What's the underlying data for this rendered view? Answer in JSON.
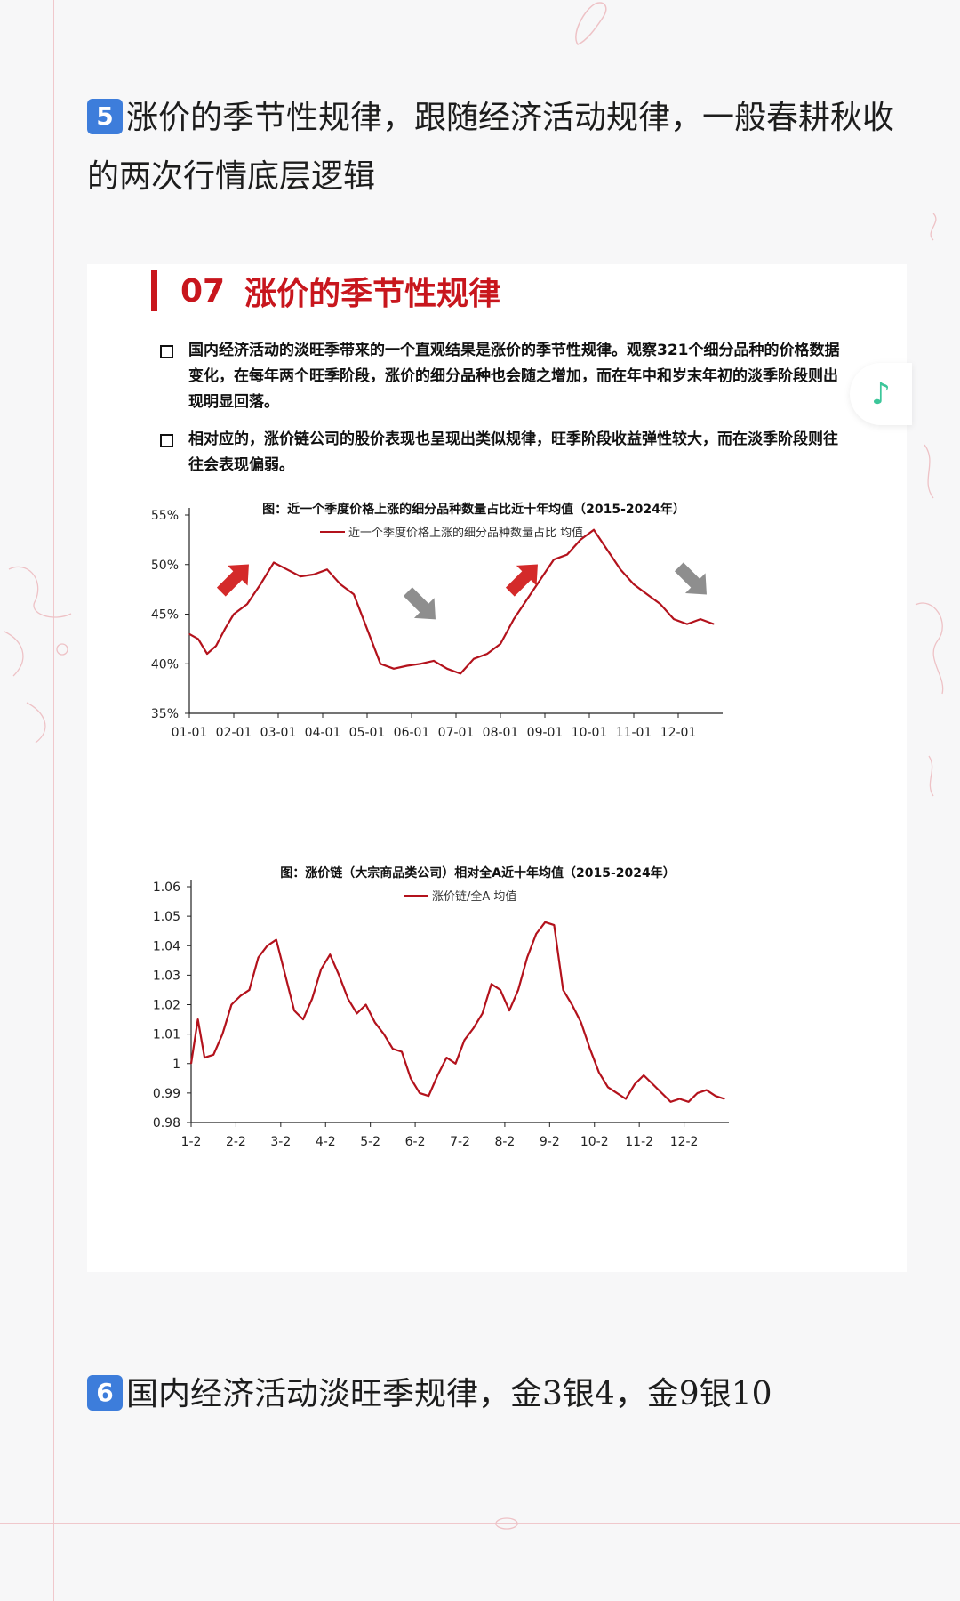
{
  "note5": {
    "badge": "5",
    "text": "涨价的季节性规律，跟随经济活动规律，一般春耕秋收的两次行情底层逻辑"
  },
  "slide": {
    "number": "07",
    "title": "涨价的季节性规律",
    "bullets": [
      "国内经济活动的淡旺季带来的一个直观结果是涨价的季节性规律。观察321个细分品种的价格数据变化，在每年两个旺季阶段，涨价的细分品种也会随之增加，而在年中和岁末年初的淡季阶段则出现明显回落。",
      "相对应的，涨价链公司的股价表现也呈现出类似规律，旺季阶段收益弹性较大，而在淡季阶段则往往会表现偏弱。"
    ]
  },
  "chart_data": [
    {
      "type": "line",
      "title": "图：近一个季度价格上涨的细分品种数量占比近十年均值（2015-2024年）",
      "legend": "top-center",
      "series": [
        {
          "name": "近一个季度价格上涨的细分品种数量占比 均值",
          "color": "#b3121c",
          "x": [
            0,
            0.2,
            0.4,
            0.6,
            0.8,
            1.0,
            1.3,
            1.6,
            1.9,
            2.2,
            2.5,
            2.8,
            3.1,
            3.4,
            3.7,
            4.0,
            4.3,
            4.6,
            4.9,
            5.2,
            5.5,
            5.8,
            6.1,
            6.4,
            6.7,
            7.0,
            7.3,
            7.6,
            7.9,
            8.2,
            8.5,
            8.8,
            9.1,
            9.4,
            9.7,
            10.0,
            10.3,
            10.6,
            10.9,
            11.2,
            11.5,
            11.8
          ],
          "y": [
            43.0,
            42.5,
            41.0,
            41.8,
            43.5,
            45.0,
            46.0,
            48.0,
            50.2,
            49.5,
            48.8,
            49.0,
            49.5,
            48.0,
            47.0,
            43.5,
            40.0,
            39.5,
            39.8,
            40.0,
            40.3,
            39.5,
            39.0,
            40.5,
            41.0,
            42.0,
            44.5,
            46.5,
            48.5,
            50.5,
            51.0,
            52.5,
            53.5,
            51.5,
            49.5,
            48.0,
            47.0,
            46.0,
            44.5,
            44.0,
            44.5,
            44.0
          ]
        }
      ],
      "x_tick_labels": [
        "01-01",
        "02-01",
        "03-01",
        "04-01",
        "05-01",
        "06-01",
        "07-01",
        "08-01",
        "09-01",
        "10-01",
        "11-01",
        "12-01"
      ],
      "y_tick_labels": [
        "35%",
        "40%",
        "45%",
        "50%",
        "55%"
      ],
      "ylim": [
        35,
        55
      ],
      "xlim": [
        0,
        12
      ],
      "annotations": [
        {
          "kind": "arrow-up",
          "color": "#d42a2a",
          "x": 1.0,
          "y": 48.5
        },
        {
          "kind": "arrow-down",
          "color": "#8e8e8e",
          "x": 5.2,
          "y": 46.0
        },
        {
          "kind": "arrow-up",
          "color": "#d42a2a",
          "x": 7.5,
          "y": 48.5
        },
        {
          "kind": "arrow-down",
          "color": "#8e8e8e",
          "x": 11.3,
          "y": 48.5
        }
      ]
    },
    {
      "type": "line",
      "title": "图：涨价链（大宗商品类公司）相对全A近十年均值（2015-2024年）",
      "legend": "top-center",
      "series": [
        {
          "name": "涨价链/全A 均值",
          "color": "#b3121c",
          "x": [
            0,
            0.15,
            0.3,
            0.5,
            0.7,
            0.9,
            1.1,
            1.3,
            1.5,
            1.7,
            1.9,
            2.1,
            2.3,
            2.5,
            2.7,
            2.9,
            3.1,
            3.3,
            3.5,
            3.7,
            3.9,
            4.1,
            4.3,
            4.5,
            4.7,
            4.9,
            5.1,
            5.3,
            5.5,
            5.7,
            5.9,
            6.1,
            6.3,
            6.5,
            6.7,
            6.9,
            7.1,
            7.3,
            7.5,
            7.7,
            7.9,
            8.1,
            8.3,
            8.5,
            8.7,
            8.9,
            9.1,
            9.3,
            9.5,
            9.7,
            9.9,
            10.1,
            10.3,
            10.5,
            10.7,
            10.9,
            11.1,
            11.3,
            11.5,
            11.7,
            11.9
          ],
          "y": [
            1.0,
            1.015,
            1.002,
            1.003,
            1.01,
            1.02,
            1.023,
            1.025,
            1.036,
            1.04,
            1.042,
            1.03,
            1.018,
            1.015,
            1.022,
            1.032,
            1.037,
            1.03,
            1.022,
            1.017,
            1.02,
            1.014,
            1.01,
            1.005,
            1.004,
            0.995,
            0.99,
            0.989,
            0.996,
            1.002,
            1.0,
            1.008,
            1.012,
            1.017,
            1.027,
            1.025,
            1.018,
            1.025,
            1.036,
            1.044,
            1.048,
            1.047,
            1.025,
            1.02,
            1.014,
            1.005,
            0.997,
            0.992,
            0.99,
            0.988,
            0.993,
            0.996,
            0.993,
            0.99,
            0.987,
            0.988,
            0.987,
            0.99,
            0.991,
            0.989,
            0.988
          ]
        }
      ],
      "x_tick_labels": [
        "1-2",
        "2-2",
        "3-2",
        "4-2",
        "5-2",
        "6-2",
        "7-2",
        "8-2",
        "9-2",
        "10-2",
        "11-2",
        "12-2"
      ],
      "y_tick_labels": [
        "0.98",
        "0.99",
        "1",
        "1.01",
        "1.02",
        "1.03",
        "1.04",
        "1.05",
        "1.06"
      ],
      "ylim": [
        0.98,
        1.06
      ],
      "xlim": [
        0,
        12
      ]
    }
  ],
  "note6": {
    "badge": "6",
    "text": "国内经济活动淡旺季规律，金3银4，金9银10"
  },
  "music_icon": "music-note-icon"
}
